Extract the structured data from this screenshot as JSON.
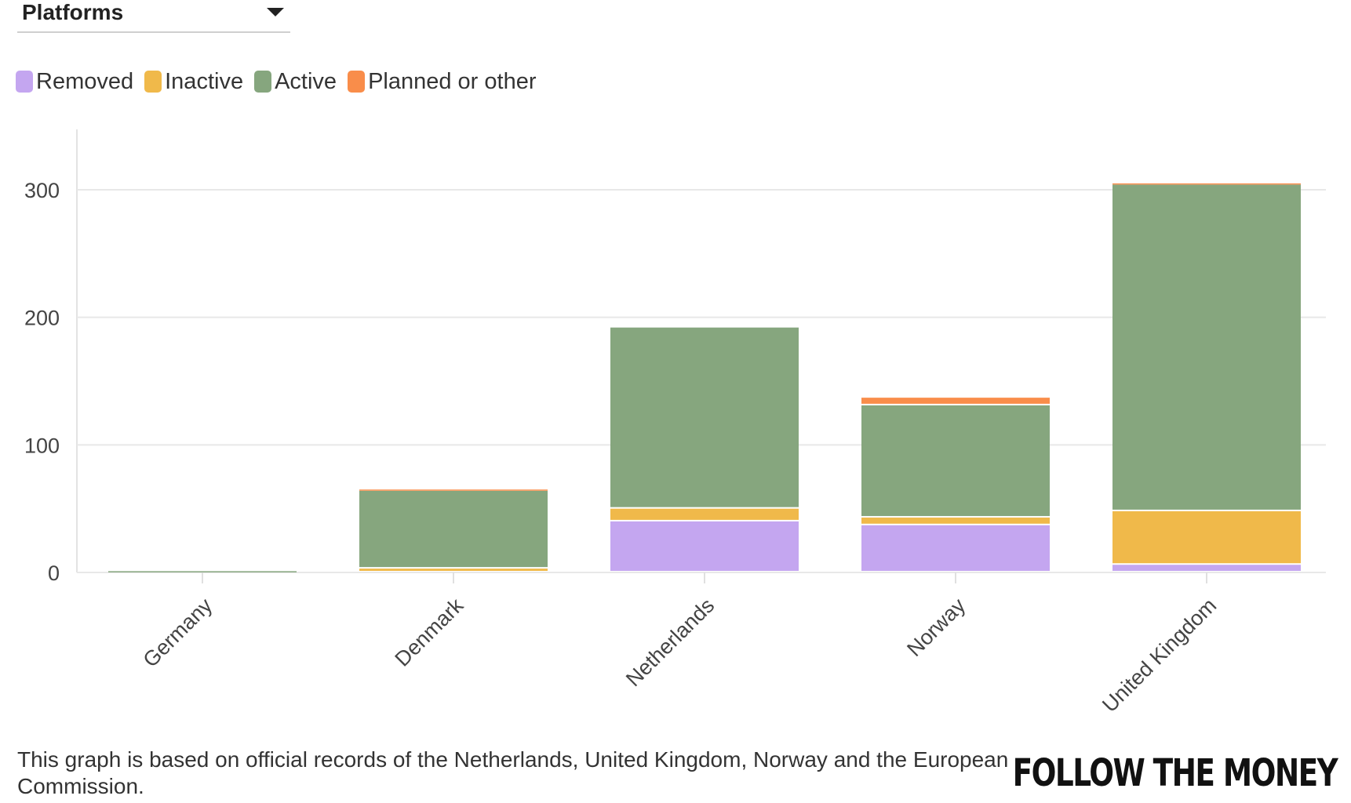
{
  "dropdown": {
    "label": "Platforms"
  },
  "legend": [
    {
      "label": "Removed",
      "color": "#c4a6f0"
    },
    {
      "label": "Inactive",
      "color": "#f0b94a"
    },
    {
      "label": "Active",
      "color": "#86a67e"
    },
    {
      "label": "Planned or other",
      "color": "#f98d4a"
    }
  ],
  "chart_data": {
    "type": "bar",
    "stacked": true,
    "categories": [
      "Germany",
      "Denmark",
      "Netherlands",
      "Norway",
      "United Kingdom"
    ],
    "series": [
      {
        "name": "Removed",
        "color": "#c4a6f0",
        "values": [
          0,
          0,
          40,
          37,
          6
        ]
      },
      {
        "name": "Inactive",
        "color": "#f0b94a",
        "values": [
          0,
          3,
          10,
          6,
          42
        ]
      },
      {
        "name": "Active",
        "color": "#86a67e",
        "values": [
          1,
          61,
          142,
          88,
          256
        ]
      },
      {
        "name": "Planned or other",
        "color": "#f98d4a",
        "values": [
          0,
          1,
          0,
          6,
          1
        ]
      }
    ],
    "yticks": [
      0,
      100,
      200,
      300
    ],
    "ylim": [
      0,
      350
    ],
    "grid": true,
    "legend_position": "top-left"
  },
  "footnote": "This graph is based on official records of the Netherlands, United Kingdom, Norway and the European Commission.",
  "brand": "FOLLOW THE MONEY"
}
